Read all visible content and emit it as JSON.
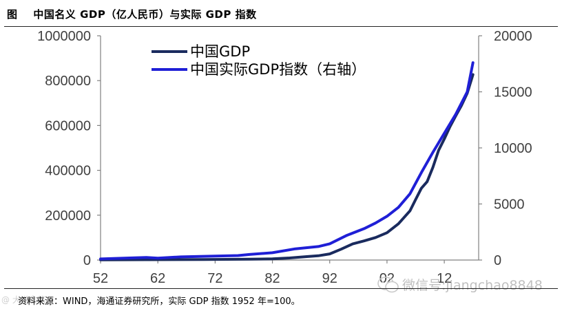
{
  "header": {
    "title": "图    中国名义 GDP（亿人民币）与实际 GDP 指数"
  },
  "footer": {
    "source": "资料来源：WIND，海通证券研究所，实际 GDP 指数 1952 年=100。"
  },
  "watermark": {
    "text": "微信号:jiangchao8848",
    "left_text": "@ 大道拿花"
  },
  "colors": {
    "nominal": "#1a2b5e",
    "real": "#1f1fd6",
    "axis": "#808080"
  },
  "chart_data": {
    "type": "line",
    "title": "",
    "xlabel": "",
    "ylabel": "",
    "x_ticks": [
      "52",
      "62",
      "72",
      "82",
      "92",
      "02",
      "12"
    ],
    "x_tick_years": [
      1952,
      1962,
      1972,
      1982,
      1992,
      2002,
      2012
    ],
    "x_range": [
      1952,
      2018
    ],
    "left_axis": {
      "range": [
        0,
        1000000
      ],
      "ticks": [
        "0",
        "200000",
        "400000",
        "600000",
        "800000",
        "1000000"
      ],
      "tick_values": [
        0,
        200000,
        400000,
        600000,
        800000,
        1000000
      ]
    },
    "right_axis": {
      "range": [
        0,
        20000
      ],
      "ticks": [
        "0",
        "5000",
        "10000",
        "15000",
        "20000"
      ],
      "tick_values": [
        0,
        5000,
        10000,
        15000,
        20000
      ]
    },
    "legend": {
      "placement": "top-left",
      "items": [
        "中国GDP",
        "中国实际GDP指数（右轴）"
      ]
    },
    "series": [
      {
        "name": "中国GDP",
        "axis": "left",
        "x": [
          1952,
          1960,
          1970,
          1978,
          1982,
          1985,
          1988,
          1990,
          1992,
          1994,
          1996,
          1998,
          2000,
          2002,
          2004,
          2006,
          2007,
          2008,
          2009,
          2010,
          2011,
          2012,
          2013,
          2014,
          2015,
          2016,
          2017
        ],
        "values": [
          679,
          1470,
          2280,
          3680,
          5370,
          9100,
          15200,
          18900,
          27200,
          48600,
          71800,
          85200,
          100300,
          121700,
          161800,
          219000,
          270000,
          320000,
          349000,
          413000,
          489000,
          540000,
          595000,
          643000,
          689000,
          744000,
          827000
        ]
      },
      {
        "name": "中国实际GDP指数（右轴）",
        "axis": "right",
        "x": [
          1952,
          1958,
          1960,
          1962,
          1966,
          1970,
          1976,
          1978,
          1982,
          1986,
          1990,
          1992,
          1995,
          1998,
          2000,
          2002,
          2004,
          2006,
          2008,
          2010,
          2012,
          2014,
          2016,
          2017
        ],
        "values": [
          100,
          200,
          230,
          170,
          280,
          330,
          400,
          500,
          650,
          1000,
          1200,
          1450,
          2200,
          2800,
          3300,
          3900,
          4700,
          5900,
          7800,
          9600,
          11300,
          13000,
          15000,
          17600
        ]
      }
    ]
  }
}
